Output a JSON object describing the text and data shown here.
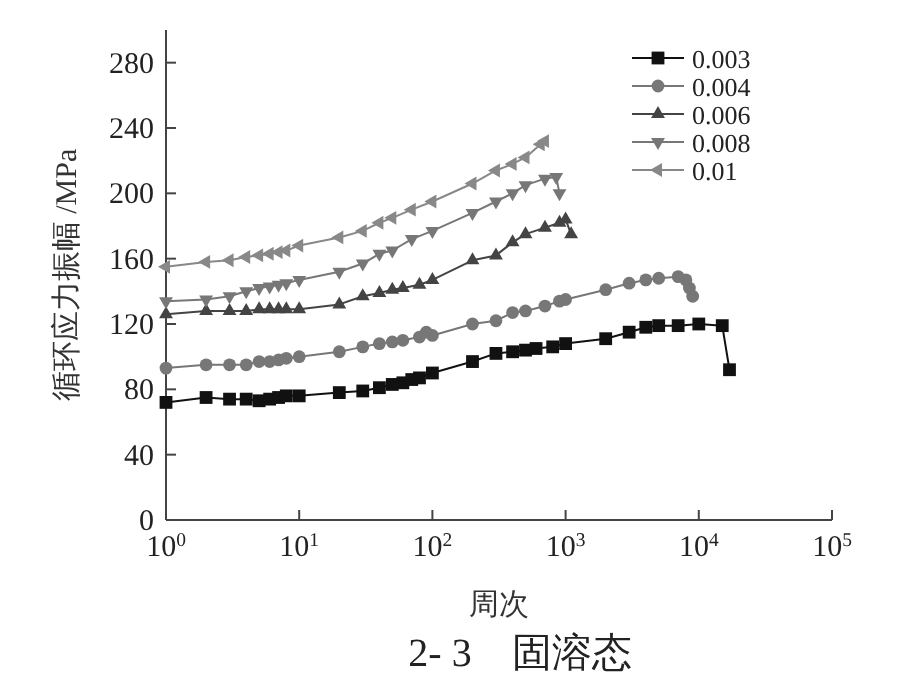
{
  "chart_data": {
    "type": "line",
    "xlabel": "周次",
    "ylabel": "循环应力振幅 /MPa",
    "annotations": [
      "2- 3　固溶态"
    ],
    "log": "x",
    "grid": false,
    "legend": "top right",
    "line_style": "solid",
    "xlim": [
      1,
      100000
    ],
    "xticks": [
      {
        "value": 1,
        "label": "10$^{0}$"
      },
      {
        "value": 10,
        "label": "10$^{1}$"
      },
      {
        "value": 100,
        "label": "10$^{2}$"
      },
      {
        "value": 1000,
        "label": "10$^{3}$"
      },
      {
        "value": 10000,
        "label": "10$^{4}$"
      },
      {
        "value": 100000,
        "label": "10$^{5}$"
      }
    ],
    "ylim": [
      0,
      300
    ],
    "yticks": [
      0,
      40,
      80,
      120,
      160,
      200,
      240,
      280
    ],
    "series": [
      {
        "name": "0.003",
        "color": "#111111",
        "marker": "square",
        "x": [
          1,
          2,
          3,
          4,
          5,
          6,
          7,
          8,
          10,
          20,
          30,
          40,
          50,
          60,
          70,
          80,
          100,
          200,
          300,
          400,
          500,
          600,
          800,
          1000,
          2000,
          3000,
          4000,
          5000,
          7000,
          10000,
          15000,
          17000
        ],
        "values": [
          72,
          75,
          74,
          74,
          73,
          74,
          75,
          76,
          76,
          78,
          79,
          81,
          83,
          84,
          86,
          87,
          90,
          97,
          102,
          103,
          104,
          105,
          106,
          108,
          111,
          115,
          118,
          119,
          119,
          120,
          119,
          92
        ]
      },
      {
        "name": "0.004",
        "color": "#777777",
        "marker": "circle",
        "x": [
          1,
          2,
          3,
          4,
          5,
          6,
          7,
          8,
          10,
          20,
          30,
          40,
          50,
          60,
          80,
          90,
          100,
          200,
          300,
          400,
          500,
          700,
          900,
          1000,
          2000,
          3000,
          4000,
          5000,
          7000,
          8000,
          8500,
          9000
        ],
        "values": [
          93,
          95,
          95,
          95,
          97,
          97,
          98,
          99,
          100,
          103,
          106,
          108,
          109,
          110,
          112,
          115,
          113,
          120,
          122,
          127,
          128,
          131,
          134,
          135,
          141,
          145,
          147,
          148,
          149,
          147,
          142,
          137
        ]
      },
      {
        "name": "0.006",
        "color": "#444444",
        "marker": "triangle",
        "x": [
          1,
          2,
          3,
          4,
          5,
          6,
          7,
          8,
          10,
          20,
          30,
          40,
          50,
          60,
          80,
          100,
          200,
          300,
          400,
          500,
          700,
          900,
          1000,
          1100
        ],
        "values": [
          126,
          128,
          128,
          128,
          129,
          129,
          129,
          129,
          129,
          132,
          137,
          139,
          141,
          142,
          144,
          147,
          159,
          162,
          170,
          175,
          179,
          182,
          184,
          175
        ]
      },
      {
        "name": "0.008",
        "color": "#777777",
        "marker": "triangle-down",
        "x": [
          1,
          2,
          3,
          4,
          5,
          6,
          7,
          8,
          10,
          20,
          30,
          40,
          50,
          70,
          100,
          200,
          300,
          400,
          500,
          700,
          850,
          900
        ],
        "values": [
          134,
          135,
          137,
          140,
          142,
          143,
          144,
          145,
          147,
          152,
          157,
          163,
          165,
          172,
          177,
          188,
          195,
          200,
          205,
          209,
          210,
          200
        ]
      },
      {
        "name": "0.01",
        "color": "#888888",
        "marker": "triangle-left",
        "x": [
          1,
          2,
          3,
          4,
          5,
          6,
          7,
          8,
          10,
          20,
          30,
          40,
          50,
          70,
          100,
          200,
          300,
          400,
          500,
          650,
          700
        ],
        "values": [
          155,
          158,
          159,
          161,
          162,
          163,
          164,
          165,
          168,
          173,
          177,
          182,
          185,
          190,
          195,
          206,
          214,
          218,
          222,
          230,
          232
        ]
      }
    ]
  }
}
